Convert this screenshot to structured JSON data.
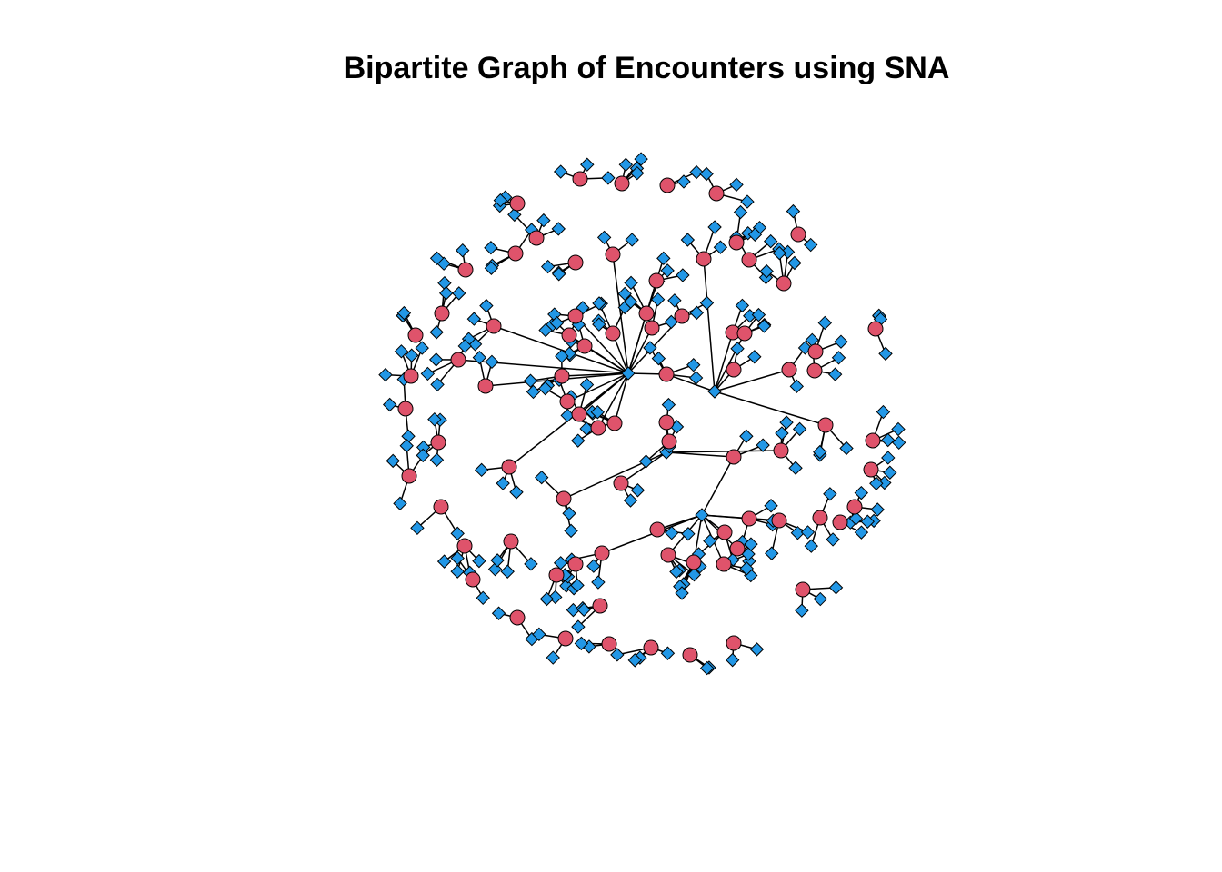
{
  "title": "Bipartite Graph of Encounters using SNA",
  "colors": {
    "event_node": "#DF536B",
    "actor_node": "#2297E6",
    "edge": "#000000",
    "outline": "#000000",
    "background": "#FFFFFF"
  },
  "legend": {
    "event_shape": "circle",
    "actor_shape": "diamond"
  }
}
